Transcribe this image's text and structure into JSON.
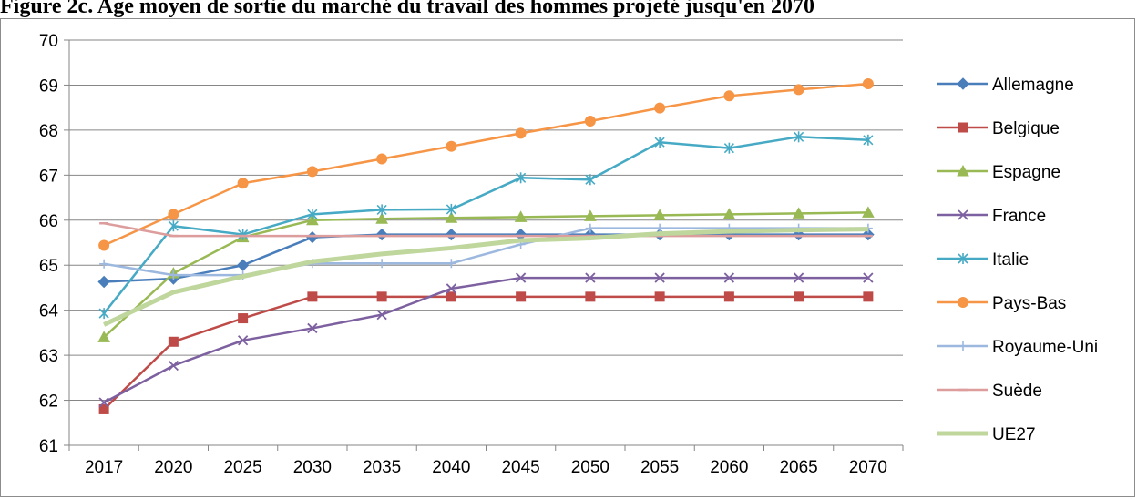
{
  "figure": {
    "title": "Figure 2c. Age moyen de sortie du marché du travail des hommes projeté jusqu'en 2070"
  },
  "chart_data": {
    "type": "line",
    "title": "",
    "xlabel": "",
    "ylabel": "",
    "categories": [
      "2017",
      "2020",
      "2025",
      "2030",
      "2035",
      "2040",
      "2045",
      "2050",
      "2055",
      "2060",
      "2065",
      "2070"
    ],
    "ylim": [
      61,
      70
    ],
    "yticks": [
      "61",
      "62",
      "63",
      "64",
      "65",
      "66",
      "67",
      "68",
      "69",
      "70"
    ],
    "grid": "horizontal",
    "legend_position": "right",
    "series": [
      {
        "name": "Allemagne",
        "color": "#4a7ebb",
        "marker": "diamond",
        "values": [
          64.63,
          64.7,
          65.0,
          65.62,
          65.68,
          65.68,
          65.68,
          65.68,
          65.68,
          65.68,
          65.68,
          65.68
        ]
      },
      {
        "name": "Belgique",
        "color": "#be4b48",
        "marker": "square",
        "values": [
          61.8,
          63.3,
          63.82,
          64.3,
          64.3,
          64.3,
          64.3,
          64.3,
          64.3,
          64.3,
          64.3,
          64.3
        ]
      },
      {
        "name": "Espagne",
        "color": "#98b954",
        "marker": "triangle",
        "values": [
          63.4,
          64.82,
          65.62,
          66.0,
          66.03,
          66.05,
          66.07,
          66.09,
          66.11,
          66.13,
          66.15,
          66.17
        ]
      },
      {
        "name": "France",
        "color": "#7d60a0",
        "marker": "x",
        "values": [
          61.95,
          62.77,
          63.33,
          63.6,
          63.9,
          64.48,
          64.72,
          64.72,
          64.72,
          64.72,
          64.72,
          64.72
        ]
      },
      {
        "name": "Italie",
        "color": "#46aac5",
        "marker": "star",
        "values": [
          63.93,
          65.87,
          65.68,
          66.13,
          66.23,
          66.24,
          66.94,
          66.9,
          67.73,
          67.6,
          67.85,
          67.78
        ]
      },
      {
        "name": "Pays-Bas",
        "color": "#f69545",
        "marker": "circle",
        "values": [
          65.44,
          66.13,
          66.82,
          67.08,
          67.36,
          67.64,
          67.93,
          68.2,
          68.49,
          68.76,
          68.9,
          69.03
        ]
      },
      {
        "name": "Royaume-Uni",
        "color": "#9db8df",
        "marker": "plus",
        "values": [
          65.03,
          64.78,
          64.78,
          65.04,
          65.04,
          65.04,
          65.46,
          65.82,
          65.82,
          65.82,
          65.82,
          65.82
        ]
      },
      {
        "name": "Suède",
        "color": "#dc9d9c",
        "marker": "dash",
        "values": [
          65.93,
          65.65,
          65.65,
          65.65,
          65.65,
          65.65,
          65.65,
          65.65,
          65.65,
          65.65,
          65.65,
          65.65
        ]
      },
      {
        "name": "UE27",
        "color": "#bfd69d",
        "marker": "none",
        "thick": true,
        "values": [
          63.68,
          64.4,
          64.75,
          65.08,
          65.25,
          65.38,
          65.55,
          65.6,
          65.7,
          65.75,
          65.78,
          65.8
        ]
      }
    ]
  }
}
